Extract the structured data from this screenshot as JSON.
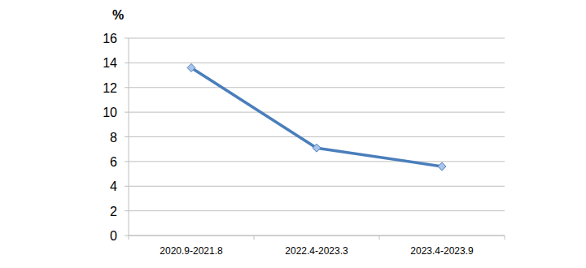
{
  "chart_data": {
    "type": "line",
    "y_label": "%",
    "categories": [
      "2020.9-2021.8",
      "2022.4-2023.3",
      "2023.4-2023.9"
    ],
    "values": [
      13.6,
      7.1,
      5.6
    ],
    "color": "#4a7ebb",
    "marker": "diamond",
    "line_style": "solid",
    "ylim": [
      0,
      16
    ],
    "yticks": [
      0,
      2,
      4,
      6,
      8,
      10,
      12,
      14,
      16
    ],
    "grid": true
  }
}
